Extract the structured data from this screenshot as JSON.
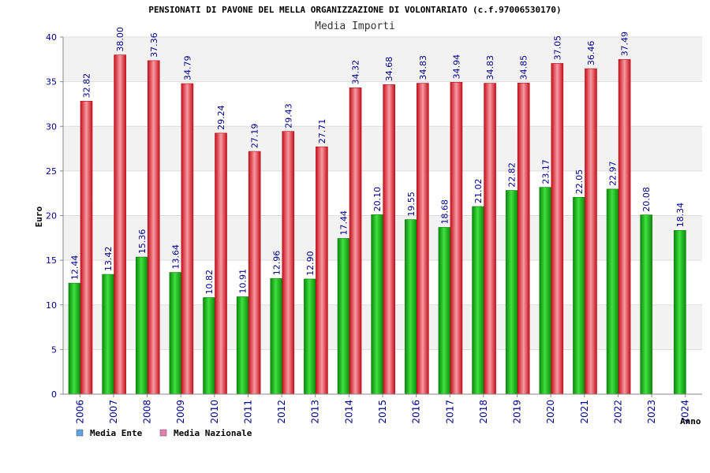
{
  "chart_data": {
    "type": "bar",
    "title": "PENSIONATI DI PAVONE DEL MELLA ORGANIZZAZIONE DI VOLONTARIATO (c.f.97006530170)",
    "subtitle": "Media Importi",
    "xlabel": "Anno",
    "ylabel": "Euro",
    "ylim": [
      0,
      40
    ],
    "yticks": [
      0,
      5,
      10,
      15,
      20,
      25,
      30,
      35,
      40
    ],
    "grid": true,
    "legend_position": "bottom-left",
    "categories": [
      "2006",
      "2007",
      "2008",
      "2009",
      "2010",
      "2011",
      "2012",
      "2013",
      "2014",
      "2015",
      "2016",
      "2017",
      "2018",
      "2019",
      "2020",
      "2021",
      "2022",
      "2023",
      "2024"
    ],
    "series": [
      {
        "name": "Media Ente",
        "color": "#1fb41f",
        "legend_color": "#5fa2dd",
        "values": [
          12.44,
          13.42,
          15.36,
          13.64,
          10.82,
          10.91,
          12.96,
          12.9,
          17.44,
          20.1,
          19.55,
          18.68,
          21.02,
          22.82,
          23.17,
          22.05,
          22.97,
          20.08,
          18.34
        ],
        "labels": [
          "12.44",
          "13.42",
          "15.36",
          "13.64",
          "10.82",
          "10.91",
          "12.96",
          "12.90",
          "17.44",
          "20.10",
          "19.55",
          "18.68",
          "21.02",
          "22.82",
          "23.17",
          "22.05",
          "22.97",
          "20.08",
          "18.34"
        ]
      },
      {
        "name": "Media Nazionale",
        "color": "#e82a36",
        "legend_color": "#e57fb0",
        "values": [
          32.82,
          38.0,
          37.36,
          34.79,
          29.24,
          27.19,
          29.43,
          27.71,
          34.32,
          34.68,
          34.83,
          34.94,
          34.83,
          34.85,
          37.05,
          36.46,
          37.49,
          null,
          null
        ],
        "labels": [
          "32.82",
          "38.00",
          "37.36",
          "34.79",
          "29.24",
          "27.19",
          "29.43",
          "27.71",
          "34.32",
          "34.68",
          "34.83",
          "34.94",
          "34.83",
          "34.85",
          "37.05",
          "36.46",
          "37.49",
          "",
          ""
        ]
      }
    ]
  }
}
